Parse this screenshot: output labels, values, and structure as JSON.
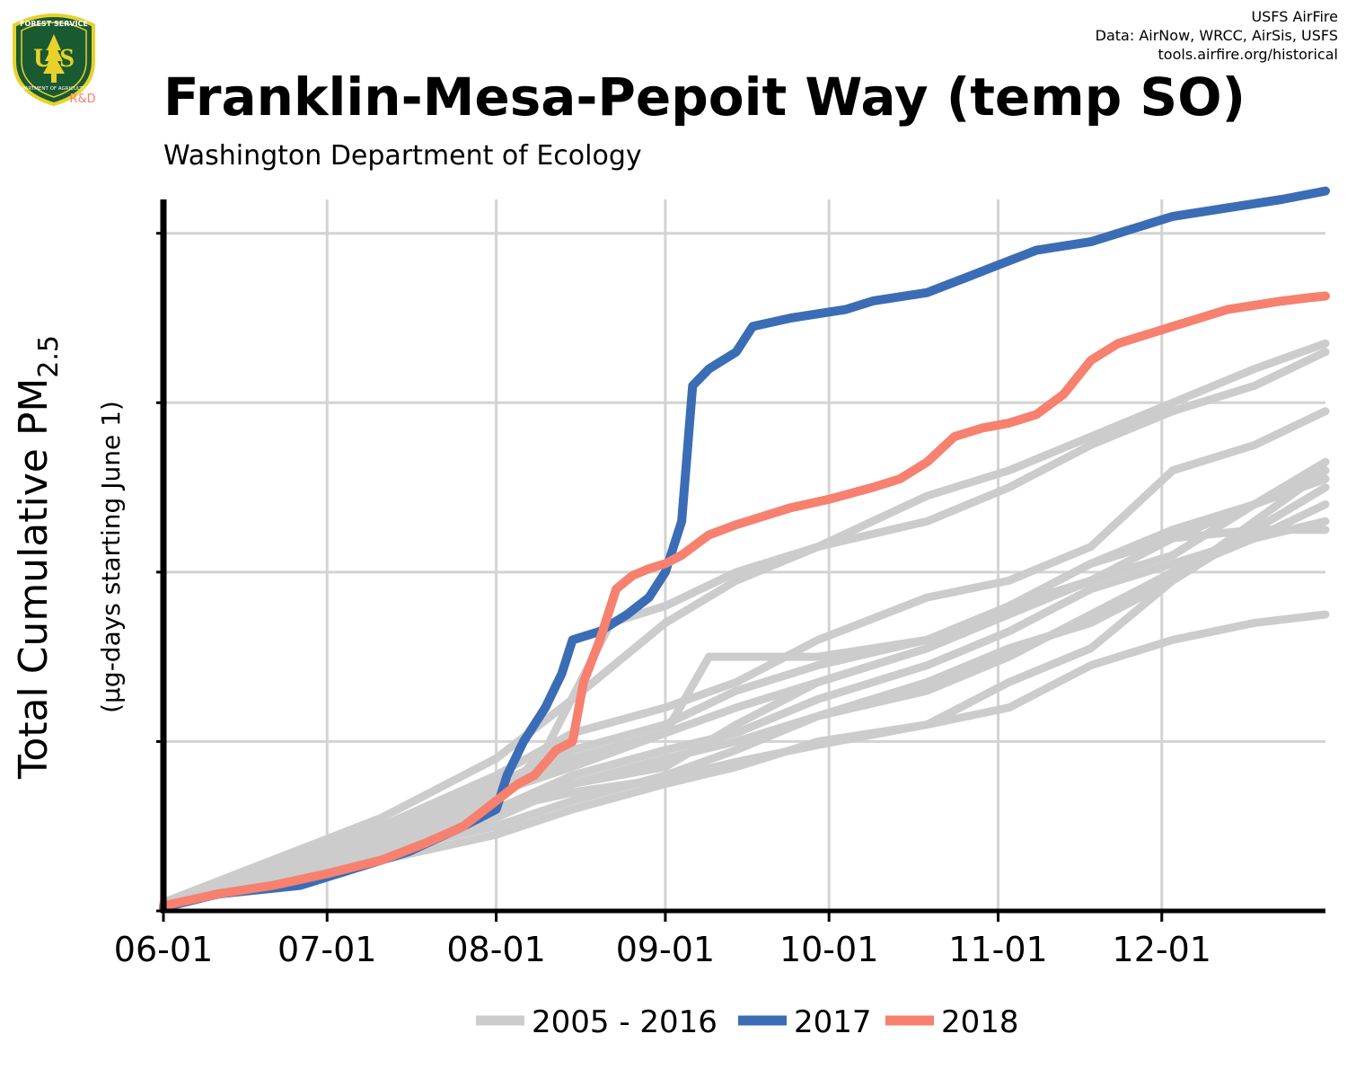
{
  "logo": {
    "top_text": "FOREST SERVICE",
    "letters": "U S",
    "bottom_text": "DEPARTMENT OF AGRICULTURE",
    "rd": "R&D",
    "colors": {
      "shield_fill": "#1a5a32",
      "rim": "#e8d22a"
    }
  },
  "credits": {
    "line1": "USFS AirFire",
    "line2": "Data: AirNow, WRCC, AirSis, USFS",
    "line3": "tools.airfire.org/historical"
  },
  "title": "Franklin-Mesa-Pepoit Way (temp SO)",
  "subtitle": "Washington Department of Ecology",
  "chart_data": {
    "type": "line",
    "title": "Franklin-Mesa-Pepoit Way (temp SO)",
    "subtitle": "Washington Department of Ecology",
    "ylabel": "Total Cumulative PM",
    "ylabel_sub": "2.5",
    "ylabel2": "(µg-days starting June 1)",
    "x_ticks": [
      "06-01",
      "07-01",
      "08-01",
      "09-01",
      "10-01",
      "11-01",
      "12-01"
    ],
    "x_tick_days": [
      0,
      30,
      61,
      92,
      122,
      153,
      183
    ],
    "xlim_days": [
      0,
      213
    ],
    "ylim": [
      0,
      4.2
    ],
    "y_ticks": [
      0,
      1,
      2,
      3,
      4
    ],
    "y_tick_labels_visible": false,
    "grid": true,
    "legend_position": "bottom",
    "series": [
      {
        "name": "2005 - 2016",
        "color": "#cccccc",
        "group": "historical",
        "x": [
          0,
          20,
          40,
          61,
          75,
          92,
          105,
          120,
          140,
          155,
          170,
          185,
          200,
          213
        ],
        "y": [
          0.05,
          0.3,
          0.55,
          0.9,
          1.25,
          1.7,
          1.95,
          2.15,
          2.3,
          2.5,
          2.75,
          2.95,
          3.1,
          3.3
        ]
      },
      {
        "color": "#cccccc",
        "group": "historical",
        "x": [
          0,
          20,
          40,
          61,
          75,
          92,
          105,
          120,
          140,
          155,
          170,
          185,
          200,
          213
        ],
        "y": [
          0.05,
          0.25,
          0.5,
          0.8,
          1.05,
          1.2,
          1.35,
          1.6,
          1.85,
          1.95,
          2.15,
          2.6,
          2.75,
          2.95
        ]
      },
      {
        "color": "#cccccc",
        "group": "historical",
        "x": [
          0,
          20,
          40,
          61,
          75,
          92,
          105,
          120,
          140,
          155,
          170,
          185,
          200,
          213
        ],
        "y": [
          0.04,
          0.25,
          0.5,
          0.75,
          0.95,
          1.1,
          1.3,
          1.45,
          1.6,
          1.8,
          2.05,
          2.25,
          2.4,
          2.65
        ]
      },
      {
        "color": "#cccccc",
        "group": "historical",
        "x": [
          0,
          20,
          40,
          61,
          75,
          92,
          105,
          120,
          140,
          155,
          170,
          185,
          200,
          213
        ],
        "y": [
          0.04,
          0.2,
          0.45,
          0.7,
          0.9,
          1.05,
          1.2,
          1.35,
          1.55,
          1.75,
          1.95,
          2.2,
          2.4,
          2.55
        ]
      },
      {
        "color": "#cccccc",
        "group": "historical",
        "x": [
          0,
          20,
          40,
          61,
          75,
          92,
          105,
          120,
          140,
          155,
          170,
          185,
          200,
          213
        ],
        "y": [
          0.04,
          0.2,
          0.4,
          0.6,
          0.8,
          0.95,
          1.05,
          1.25,
          1.45,
          1.65,
          1.9,
          2.05,
          2.2,
          2.4
        ]
      },
      {
        "color": "#cccccc",
        "group": "historical",
        "x": [
          0,
          20,
          40,
          61,
          75,
          92,
          105,
          120,
          140,
          155,
          170,
          185,
          200,
          213
        ],
        "y": [
          0.04,
          0.2,
          0.35,
          0.55,
          0.75,
          0.9,
          1.0,
          1.15,
          1.3,
          1.5,
          1.75,
          2.0,
          2.2,
          2.3
        ]
      },
      {
        "color": "#cccccc",
        "group": "historical",
        "x": [
          0,
          20,
          40,
          61,
          75,
          92,
          105,
          120,
          140,
          155,
          170,
          185,
          200,
          213
        ],
        "y": [
          0.04,
          0.15,
          0.35,
          0.5,
          0.65,
          0.8,
          0.95,
          1.15,
          1.35,
          1.55,
          1.7,
          1.95,
          2.25,
          2.5
        ]
      },
      {
        "color": "#cccccc",
        "group": "historical",
        "x": [
          0,
          20,
          40,
          61,
          75,
          92,
          105,
          120,
          140,
          155,
          170,
          185,
          200,
          213
        ],
        "y": [
          0.04,
          0.15,
          0.3,
          0.45,
          0.6,
          0.75,
          0.85,
          1.0,
          1.1,
          1.2,
          1.45,
          1.6,
          1.7,
          1.75
        ]
      },
      {
        "color": "#cccccc",
        "group": "historical",
        "x": [
          0,
          20,
          40,
          61,
          75,
          92,
          100,
          120,
          140,
          155,
          170,
          185,
          200,
          213
        ],
        "y": [
          0.04,
          0.25,
          0.45,
          0.7,
          0.85,
          1.05,
          1.5,
          1.5,
          1.6,
          1.8,
          2.05,
          2.2,
          2.25,
          2.25
        ]
      },
      {
        "color": "#cccccc",
        "group": "historical",
        "x": [
          0,
          20,
          40,
          61,
          75,
          92,
          105,
          120,
          140,
          155,
          170,
          185,
          200,
          213
        ],
        "y": [
          0.04,
          0.2,
          0.4,
          0.6,
          0.75,
          0.85,
          1.1,
          1.35,
          1.55,
          1.8,
          1.95,
          2.1,
          2.4,
          2.6
        ]
      },
      {
        "color": "#cccccc",
        "group": "historical",
        "x": [
          0,
          20,
          40,
          61,
          75,
          92,
          105,
          120,
          140,
          155,
          170,
          185,
          200,
          213
        ],
        "y": [
          0.04,
          0.22,
          0.45,
          0.6,
          0.7,
          0.78,
          0.88,
          0.98,
          1.1,
          1.35,
          1.55,
          1.95,
          2.3,
          2.6
        ]
      },
      {
        "color": "#cccccc",
        "group": "historical",
        "x": [
          0,
          20,
          40,
          61,
          70,
          82,
          92,
          105,
          120,
          140,
          155,
          170,
          185,
          200,
          213
        ],
        "y": [
          0.04,
          0.2,
          0.4,
          0.65,
          0.95,
          1.7,
          1.8,
          2.0,
          2.15,
          2.45,
          2.6,
          2.8,
          3.0,
          3.2,
          3.35
        ]
      },
      {
        "name": "2017",
        "color": "#3a6db5",
        "group": "highlight",
        "x": [
          0,
          10,
          25,
          35,
          45,
          55,
          61,
          63,
          66,
          70,
          73,
          75,
          80,
          85,
          89,
          91,
          92,
          93,
          95,
          97,
          100,
          105,
          108,
          115,
          125,
          130,
          140,
          148,
          152,
          160,
          170,
          175,
          185,
          195,
          205,
          213
        ],
        "y": [
          0.02,
          0.1,
          0.15,
          0.25,
          0.35,
          0.5,
          0.6,
          0.8,
          1.0,
          1.2,
          1.4,
          1.6,
          1.65,
          1.75,
          1.85,
          1.95,
          2.0,
          2.1,
          2.3,
          3.1,
          3.2,
          3.3,
          3.45,
          3.5,
          3.55,
          3.6,
          3.65,
          3.75,
          3.8,
          3.9,
          3.95,
          4.0,
          4.1,
          4.15,
          4.2,
          4.25
        ]
      },
      {
        "name": "2018",
        "color": "#f7806f",
        "group": "highlight",
        "x": [
          0,
          10,
          20,
          30,
          40,
          48,
          55,
          61,
          65,
          68,
          72,
          75,
          77,
          80,
          83,
          86,
          89,
          92,
          95,
          100,
          105,
          110,
          115,
          122,
          130,
          135,
          140,
          145,
          150,
          155,
          160,
          165,
          170,
          175,
          185,
          195,
          205,
          210,
          213
        ],
        "y": [
          0.03,
          0.1,
          0.15,
          0.22,
          0.3,
          0.4,
          0.5,
          0.65,
          0.75,
          0.8,
          0.95,
          1.0,
          1.35,
          1.6,
          1.9,
          1.98,
          2.02,
          2.05,
          2.1,
          2.22,
          2.28,
          2.33,
          2.38,
          2.43,
          2.5,
          2.55,
          2.65,
          2.8,
          2.85,
          2.88,
          2.93,
          3.05,
          3.25,
          3.35,
          3.45,
          3.55,
          3.6,
          3.62,
          3.63
        ]
      }
    ]
  },
  "legend": {
    "items": [
      {
        "label": "2005 - 2016",
        "color": "#cccccc"
      },
      {
        "label": "2017",
        "color": "#3a6db5"
      },
      {
        "label": "2018",
        "color": "#f7806f"
      }
    ]
  }
}
